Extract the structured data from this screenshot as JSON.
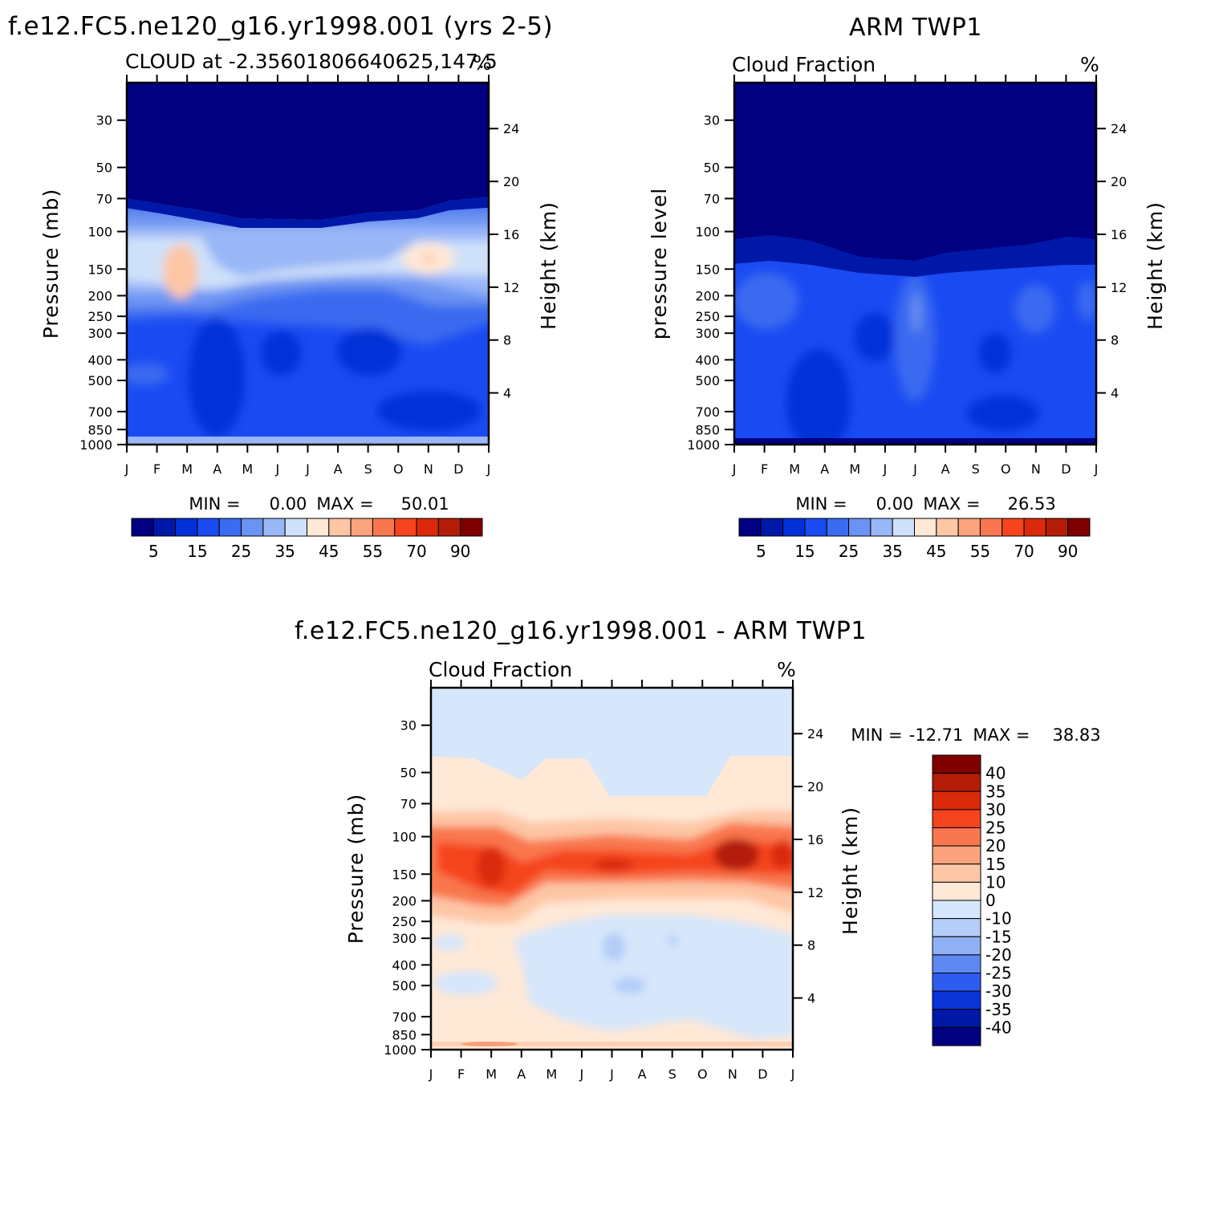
{
  "chart_data": [
    {
      "type": "heatmap",
      "id": "model",
      "main_title": "f.e12.FC5.ne120_g16.yr1998.001 (yrs 2-5)",
      "left_string": "CLOUD at -2.35601806640625,147.5",
      "right_string": "%",
      "ylabel": "Pressure (mb)",
      "ylabel_right": "Height (km)",
      "months": [
        "J",
        "F",
        "M",
        "A",
        "M",
        "J",
        "J",
        "A",
        "S",
        "O",
        "N",
        "D",
        "J"
      ],
      "pressure_ticks": [
        30,
        50,
        70,
        100,
        150,
        200,
        250,
        300,
        400,
        500,
        700,
        850,
        1000
      ],
      "ylim_mb": [
        20,
        1000
      ],
      "height_ticks_km": [
        24,
        20,
        16,
        12,
        8,
        4
      ],
      "min_label": "MIN =",
      "min_value": "0.00",
      "max_label": "MAX =",
      "max_value": "50.01",
      "colorbar_levels": [
        "5",
        "15",
        "25",
        "35",
        "45",
        "55",
        "70",
        "90"
      ],
      "colors": [
        "#000080",
        "#0018a8",
        "#0230d8",
        "#1a4bf2",
        "#3a6bf0",
        "#6b93f2",
        "#99b6f7",
        "#cfe1fa",
        "#ffe8d6",
        "#fdc6a5",
        "#fba37d",
        "#f9774e",
        "#f5441e",
        "#db2a0a",
        "#b31d08",
        "#800000"
      ]
    },
    {
      "type": "heatmap",
      "id": "obs",
      "main_title": "ARM TWP1",
      "left_string": "Cloud Fraction",
      "right_string": "%",
      "ylabel": "pressure level",
      "ylabel_right": "Height (km)",
      "months": [
        "J",
        "F",
        "M",
        "A",
        "M",
        "J",
        "J",
        "A",
        "S",
        "O",
        "N",
        "D",
        "J"
      ],
      "pressure_ticks": [
        30,
        50,
        70,
        100,
        150,
        200,
        250,
        300,
        400,
        500,
        700,
        850,
        1000
      ],
      "ylim_mb": [
        20,
        1000
      ],
      "height_ticks_km": [
        24,
        20,
        16,
        12,
        8,
        4
      ],
      "min_label": "MIN =",
      "min_value": "0.00",
      "max_label": "MAX =",
      "max_value": "26.53",
      "colorbar_levels": [
        "5",
        "15",
        "25",
        "35",
        "45",
        "55",
        "70",
        "90"
      ],
      "colors": [
        "#000080",
        "#0018a8",
        "#0230d8",
        "#1a4bf2",
        "#3a6bf0",
        "#6b93f2",
        "#99b6f7",
        "#cfe1fa",
        "#ffe8d6",
        "#fdc6a5",
        "#fba37d",
        "#f9774e",
        "#f5441e",
        "#db2a0a",
        "#b31d08",
        "#800000"
      ]
    },
    {
      "type": "heatmap",
      "id": "diff",
      "main_title": "f.e12.FC5.ne120_g16.yr1998.001 - ARM TWP1",
      "left_string": "Cloud Fraction",
      "right_string": "%",
      "ylabel": "Pressure (mb)",
      "ylabel_right": "Height (km)",
      "months": [
        "J",
        "F",
        "M",
        "A",
        "M",
        "J",
        "J",
        "A",
        "S",
        "O",
        "N",
        "D",
        "J"
      ],
      "pressure_ticks": [
        30,
        50,
        70,
        100,
        150,
        200,
        250,
        300,
        400,
        500,
        700,
        850,
        1000
      ],
      "ylim_mb": [
        20,
        1000
      ],
      "height_ticks_km": [
        24,
        20,
        16,
        12,
        8,
        4
      ],
      "min_label": "MIN =",
      "min_value": "-12.71",
      "max_label": "MAX =",
      "max_value": "38.83",
      "colorbar_levels": [
        "40",
        "35",
        "30",
        "25",
        "20",
        "15",
        "10",
        "0",
        "-10",
        "-15",
        "-20",
        "-25",
        "-30",
        "-35",
        "-40"
      ],
      "colors": [
        "#800000",
        "#b31d08",
        "#db2a0a",
        "#f5441e",
        "#f9774e",
        "#fba37d",
        "#fdc6a5",
        "#ffe8d6",
        "#d6e6fb",
        "#b3cdf8",
        "#8fb0f5",
        "#5d88f1",
        "#2e5cf1",
        "#0a34d5",
        "#0018a8",
        "#000080"
      ]
    }
  ]
}
